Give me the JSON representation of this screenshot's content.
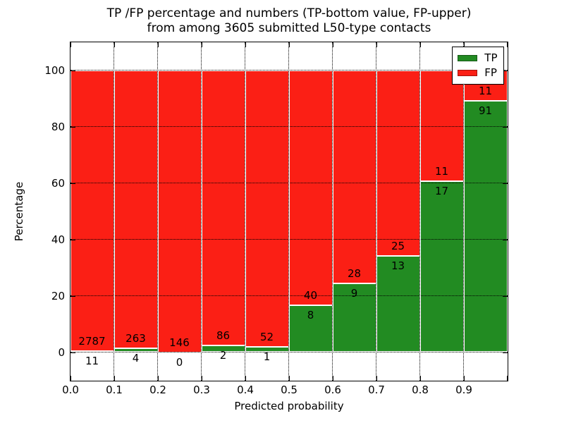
{
  "title": {
    "line1": "TP /FP percentage and numbers (TP-bottom value, FP-upper)",
    "line2": "from among 3605 submitted L50-type contacts"
  },
  "axes": {
    "xlabel": "Predicted probability",
    "ylabel": "Percentage",
    "x_tick_labels": [
      "0.0",
      "0.1",
      "0.2",
      "0.3",
      "0.4",
      "0.5",
      "0.6",
      "0.7",
      "0.8",
      "0.9"
    ],
    "y_tick_labels": [
      "0",
      "20",
      "40",
      "60",
      "80",
      "100"
    ],
    "y_tick_values": [
      0,
      20,
      40,
      60,
      80,
      100
    ],
    "ylim": [
      -10,
      110
    ],
    "xlim": [
      0.0,
      1.0
    ]
  },
  "legend": {
    "items": [
      {
        "label": "TP",
        "color_key": "tp"
      },
      {
        "label": "FP",
        "color_key": "fp"
      }
    ]
  },
  "colors": {
    "tp": "#228b22",
    "fp": "#fb1f15",
    "grid": "#000000",
    "text": "#000000",
    "background": "#ffffff"
  },
  "chart_data": {
    "type": "bar",
    "stacked": true,
    "normalized_to_percent": true,
    "title": "TP /FP percentage and numbers (TP-bottom value, FP-upper) from among 3605 submitted L50-type contacts",
    "xlabel": "Predicted probability",
    "ylabel": "Percentage",
    "total_contacts": 3605,
    "bin_edges": [
      0.0,
      0.1,
      0.2,
      0.3,
      0.4,
      0.5,
      0.6,
      0.7,
      0.8,
      0.9,
      1.0
    ],
    "categories": [
      "0.0-0.1",
      "0.1-0.2",
      "0.2-0.3",
      "0.3-0.4",
      "0.4-0.5",
      "0.5-0.6",
      "0.6-0.7",
      "0.7-0.8",
      "0.8-0.9",
      "0.9-1.0"
    ],
    "series": [
      {
        "name": "TP",
        "counts": [
          11,
          4,
          0,
          2,
          1,
          8,
          9,
          13,
          17,
          91
        ],
        "percent": [
          0.39,
          1.5,
          0.0,
          2.27,
          1.89,
          16.67,
          24.32,
          34.21,
          60.71,
          89.22
        ]
      },
      {
        "name": "FP",
        "counts": [
          2787,
          263,
          146,
          86,
          52,
          40,
          28,
          25,
          11,
          11
        ],
        "percent": [
          99.61,
          98.5,
          100.0,
          97.73,
          98.11,
          83.33,
          75.68,
          65.79,
          39.29,
          10.78
        ]
      }
    ],
    "ylim": [
      -10,
      110
    ],
    "grid": true,
    "grid_style": "dotted",
    "legend_position": "upper right"
  }
}
